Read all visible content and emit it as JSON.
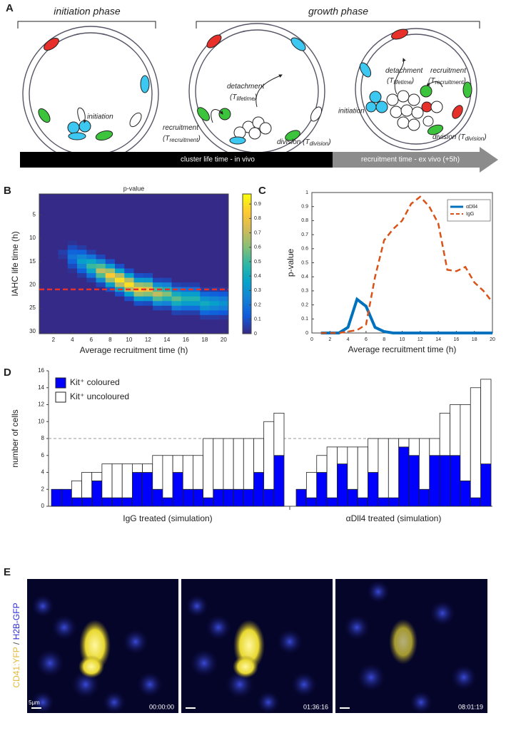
{
  "panel_a": {
    "label": "A",
    "initiation_phase": "initiation phase",
    "growth_phase": "growth phase",
    "initiation": "initiation",
    "detachment": [
      "detachment",
      "(T",
      "lifetime",
      ")"
    ],
    "recruitment": [
      "recruitment",
      "(T",
      "recruitment",
      ")"
    ],
    "division": [
      "division (T",
      "division",
      ")"
    ],
    "bar_in_vivo": "cluster life time - in vivo",
    "bar_ex_vivo": "recruitment time - ex vivo (+5h)"
  },
  "panel_labels": [
    "B",
    "C",
    "D"
  ],
  "chart_data": [
    {
      "type": "heatmap",
      "title": "p-value",
      "xlabel": "Average recruitment time (h)",
      "ylabel": "IAHC life time (h)",
      "x": [
        1,
        2,
        3,
        4,
        5,
        6,
        7,
        8,
        9,
        10,
        11,
        12,
        13,
        14,
        15,
        16,
        17,
        18,
        19,
        20
      ],
      "y": [
        1,
        2,
        3,
        4,
        5,
        6,
        7,
        8,
        9,
        10,
        11,
        12,
        13,
        14,
        15,
        16,
        17,
        18,
        19,
        20,
        21,
        22,
        23,
        24,
        25,
        26,
        27,
        28,
        29,
        30
      ],
      "xlim": [
        0.5,
        20.5
      ],
      "ylim": [
        0.5,
        30.5
      ],
      "y_inverted": true,
      "xticks": [
        2,
        4,
        6,
        8,
        10,
        12,
        14,
        16,
        18,
        20
      ],
      "yticks": [
        5,
        10,
        15,
        20,
        25,
        30
      ],
      "clim": [
        0,
        0.97
      ],
      "cticks": [
        0,
        0.1,
        0.2,
        0.3,
        0.4,
        0.5,
        0.6,
        0.7,
        0.8,
        0.9
      ],
      "colormap": [
        "#352a87",
        "#0f5cdd",
        "#1481d6",
        "#06a4ca",
        "#2eb7a4",
        "#87bf77",
        "#d1bb59",
        "#fec832",
        "#f9fb0e"
      ],
      "hline": {
        "value": 21,
        "color": "#e8302a"
      },
      "values": [
        [
          0,
          0,
          0,
          0,
          0,
          0,
          0,
          0,
          0,
          0,
          0,
          0,
          0,
          0,
          0,
          0,
          0,
          0,
          0,
          0
        ],
        [
          0,
          0,
          0,
          0,
          0,
          0,
          0,
          0,
          0,
          0,
          0,
          0,
          0,
          0,
          0,
          0,
          0,
          0,
          0,
          0
        ],
        [
          0,
          0,
          0,
          0,
          0,
          0,
          0,
          0,
          0,
          0,
          0,
          0,
          0,
          0,
          0,
          0,
          0,
          0,
          0,
          0
        ],
        [
          0,
          0,
          0,
          0,
          0,
          0,
          0,
          0,
          0,
          0,
          0,
          0,
          0,
          0,
          0,
          0,
          0,
          0,
          0,
          0
        ],
        [
          0,
          0,
          0,
          0,
          0,
          0,
          0,
          0,
          0,
          0,
          0,
          0,
          0,
          0,
          0,
          0,
          0,
          0,
          0,
          0
        ],
        [
          0,
          0,
          0,
          0,
          0,
          0,
          0,
          0,
          0,
          0,
          0,
          0,
          0,
          0,
          0,
          0,
          0,
          0,
          0,
          0
        ],
        [
          0,
          0,
          0,
          0,
          0,
          0,
          0,
          0,
          0,
          0,
          0,
          0,
          0,
          0,
          0,
          0,
          0,
          0,
          0,
          0
        ],
        [
          0,
          0,
          0,
          0,
          0,
          0,
          0,
          0,
          0,
          0,
          0,
          0,
          0,
          0,
          0,
          0,
          0,
          0,
          0,
          0
        ],
        [
          0,
          0,
          0,
          0,
          0,
          0,
          0,
          0,
          0,
          0,
          0,
          0,
          0,
          0,
          0,
          0,
          0,
          0,
          0,
          0
        ],
        [
          0,
          0,
          0,
          0,
          0,
          0,
          0,
          0,
          0,
          0,
          0,
          0,
          0,
          0,
          0,
          0,
          0,
          0,
          0,
          0
        ],
        [
          0,
          0,
          0,
          0.02,
          0,
          0,
          0,
          0,
          0,
          0,
          0,
          0,
          0,
          0,
          0,
          0,
          0,
          0,
          0,
          0
        ],
        [
          0,
          0,
          0,
          0.08,
          0.04,
          0,
          0,
          0,
          0,
          0,
          0,
          0,
          0,
          0,
          0,
          0,
          0,
          0,
          0,
          0
        ],
        [
          0,
          0,
          0.05,
          0.15,
          0.14,
          0.05,
          0,
          0,
          0,
          0,
          0,
          0,
          0,
          0,
          0,
          0,
          0,
          0,
          0,
          0
        ],
        [
          0,
          0,
          0.03,
          0.2,
          0.26,
          0.2,
          0.07,
          0,
          0,
          0,
          0,
          0,
          0,
          0,
          0,
          0,
          0,
          0,
          0,
          0
        ],
        [
          0,
          0,
          0,
          0.15,
          0.35,
          0.38,
          0.28,
          0.09,
          0,
          0,
          0,
          0,
          0,
          0,
          0,
          0,
          0,
          0,
          0,
          0
        ],
        [
          0,
          0,
          0,
          0.08,
          0.26,
          0.5,
          0.53,
          0.34,
          0.09,
          0,
          0,
          0,
          0,
          0,
          0,
          0,
          0,
          0,
          0,
          0
        ],
        [
          0,
          0,
          0,
          0.02,
          0.14,
          0.38,
          0.7,
          0.64,
          0.36,
          0.09,
          0,
          0,
          0,
          0,
          0,
          0,
          0,
          0,
          0,
          0
        ],
        [
          0,
          0,
          0,
          0,
          0.04,
          0.2,
          0.53,
          0.85,
          0.68,
          0.36,
          0.09,
          0.08,
          0,
          0,
          0,
          0,
          0,
          0,
          0,
          0
        ],
        [
          0,
          0,
          0,
          0,
          0,
          0.05,
          0.28,
          0.64,
          0.9,
          0.68,
          0.34,
          0.32,
          0.07,
          0.06,
          0,
          0,
          0,
          0,
          0,
          0
        ],
        [
          0,
          0,
          0,
          0,
          0,
          0,
          0.07,
          0.34,
          0.68,
          0.9,
          0.64,
          0.6,
          0.28,
          0.24,
          0.06,
          0.05,
          0.05,
          0,
          0,
          0
        ],
        [
          0,
          0,
          0,
          0,
          0,
          0,
          0,
          0.09,
          0.36,
          0.68,
          0.85,
          0.8,
          0.53,
          0.45,
          0.22,
          0.18,
          0.18,
          0.04,
          0.04,
          0.03
        ],
        [
          0,
          0,
          0,
          0,
          0,
          0,
          0,
          0,
          0.09,
          0.36,
          0.64,
          0.6,
          0.7,
          0.6,
          0.41,
          0.34,
          0.34,
          0.16,
          0.14,
          0.12
        ],
        [
          0,
          0,
          0,
          0,
          0,
          0,
          0,
          0,
          0,
          0.09,
          0.34,
          0.32,
          0.53,
          0.45,
          0.55,
          0.45,
          0.45,
          0.3,
          0.26,
          0.23
        ],
        [
          0,
          0,
          0,
          0,
          0,
          0,
          0,
          0,
          0,
          0,
          0.09,
          0.08,
          0.28,
          0.24,
          0.41,
          0.34,
          0.34,
          0.4,
          0.35,
          0.3
        ],
        [
          0,
          0,
          0,
          0,
          0,
          0,
          0,
          0,
          0,
          0,
          0,
          0,
          0.07,
          0.06,
          0.22,
          0.18,
          0.18,
          0.3,
          0.26,
          0.23
        ],
        [
          0,
          0,
          0,
          0,
          0,
          0,
          0,
          0,
          0,
          0,
          0,
          0,
          0,
          0,
          0.06,
          0.05,
          0.05,
          0.16,
          0.14,
          0.12
        ],
        [
          0,
          0,
          0,
          0,
          0,
          0,
          0,
          0,
          0,
          0,
          0,
          0,
          0,
          0,
          0,
          0,
          0,
          0.04,
          0.04,
          0.03
        ],
        [
          0,
          0,
          0,
          0,
          0,
          0,
          0,
          0,
          0,
          0,
          0,
          0,
          0,
          0,
          0,
          0,
          0,
          0,
          0,
          0
        ],
        [
          0,
          0,
          0,
          0,
          0,
          0,
          0,
          0,
          0,
          0,
          0,
          0,
          0,
          0,
          0,
          0,
          0,
          0,
          0,
          0
        ],
        [
          0,
          0,
          0,
          0,
          0,
          0,
          0,
          0,
          0,
          0,
          0,
          0,
          0,
          0,
          0,
          0,
          0,
          0,
          0,
          0
        ]
      ]
    },
    {
      "type": "line",
      "xlabel": "Average recruitment time (h)",
      "ylabel": "p-value",
      "legend": "upper right",
      "x": [
        1,
        2,
        3,
        4,
        5,
        6,
        7,
        8,
        9,
        10,
        11,
        12,
        13,
        14,
        15,
        16,
        17,
        18,
        19,
        20
      ],
      "xlim": [
        0,
        20
      ],
      "ylim": [
        0,
        1
      ],
      "xticks": [
        0,
        2,
        4,
        6,
        8,
        10,
        12,
        14,
        16,
        18,
        20
      ],
      "yticks": [
        0,
        0.1,
        0.2,
        0.3,
        0.4,
        0.5,
        0.6,
        0.7,
        0.8,
        0.9,
        1
      ],
      "series": [
        {
          "name": "αDll4",
          "color": "#0072bd",
          "dashed": false,
          "values": [
            0,
            0,
            0,
            0.04,
            0.24,
            0.19,
            0.04,
            0.01,
            0,
            0,
            0,
            0,
            0,
            0,
            0,
            0,
            0,
            0,
            0,
            0
          ]
        },
        {
          "name": "IgG",
          "color": "#d95319",
          "dashed": true,
          "values": [
            0,
            0,
            0,
            0.01,
            0.02,
            0.06,
            0.4,
            0.66,
            0.74,
            0.8,
            0.92,
            0.97,
            0.9,
            0.78,
            0.45,
            0.44,
            0.47,
            0.36,
            0.3,
            0.22
          ]
        }
      ]
    },
    {
      "type": "bar",
      "stacked": true,
      "ylabel": "number of cells",
      "ylim": [
        0,
        16
      ],
      "yticks": [
        0,
        2,
        4,
        6,
        8,
        10,
        12,
        14,
        16
      ],
      "hline": {
        "value": 8,
        "color": "#999999"
      },
      "legend": "upper left",
      "series": [
        {
          "name": "Kit⁺ coloured",
          "color": "#0000ff"
        },
        {
          "name": "Kit⁺ uncoloured",
          "color": "#ffffff"
        }
      ],
      "groups": [
        {
          "label": "IgG treated (simulation)",
          "values": [
            [
              2,
              2,
              1,
              1,
              3,
              1,
              1,
              1,
              4,
              4,
              2,
              1,
              4,
              2,
              2,
              1,
              2,
              2,
              2,
              2,
              4,
              2,
              6
            ],
            [
              0,
              0,
              2,
              3,
              1,
              4,
              4,
              4,
              1,
              1,
              4,
              5,
              2,
              4,
              4,
              7,
              6,
              6,
              6,
              6,
              4,
              8,
              5
            ]
          ]
        },
        {
          "label": "αDll4 treated (simulation)",
          "values": [
            [
              2,
              1,
              4,
              1,
              5,
              2,
              1,
              4,
              1,
              1,
              7,
              6,
              2,
              6,
              6,
              6,
              3,
              1,
              5
            ],
            [
              0,
              3,
              2,
              6,
              2,
              5,
              6,
              4,
              7,
              7,
              1,
              2,
              6,
              2,
              5,
              6,
              9,
              13,
              10
            ]
          ]
        }
      ]
    }
  ],
  "panel_e": {
    "label": "E",
    "channels": [
      "CD41:YFP",
      "/",
      "H2B-GFP"
    ],
    "scale": "5μm",
    "times": [
      "00:00:00",
      "01:36:16",
      "08:01:19"
    ]
  }
}
